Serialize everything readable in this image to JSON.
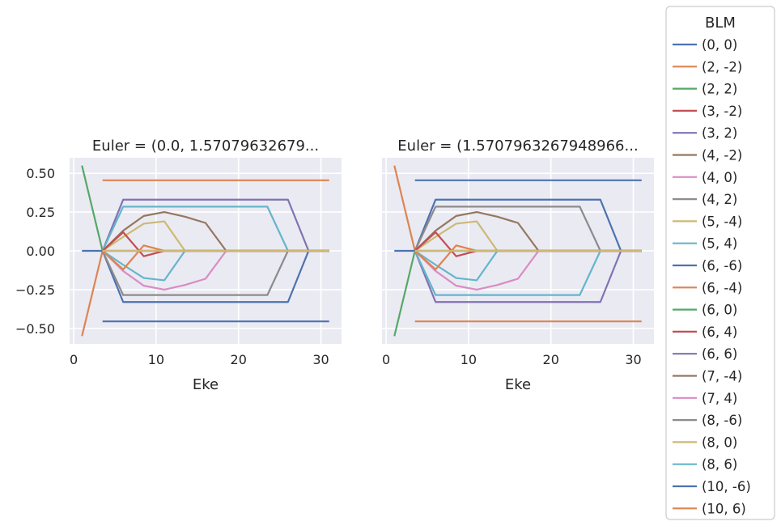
{
  "chart_data": {
    "type": "line",
    "legend": {
      "title": "BLM",
      "placement": "right-outside"
    },
    "series_styles": [
      {
        "name": "(0, 0)",
        "color": "#4c72b0"
      },
      {
        "name": "(2, -2)",
        "color": "#dd8452"
      },
      {
        "name": "(2, 2)",
        "color": "#55a868"
      },
      {
        "name": "(3, -2)",
        "color": "#c44e52"
      },
      {
        "name": "(3, 2)",
        "color": "#8172b3"
      },
      {
        "name": "(4, -2)",
        "color": "#937860"
      },
      {
        "name": "(4, 0)",
        "color": "#da8bc3"
      },
      {
        "name": "(4, 2)",
        "color": "#8c8c8c"
      },
      {
        "name": "(5, -4)",
        "color": "#ccb974"
      },
      {
        "name": "(5, 4)",
        "color": "#64b5cd"
      },
      {
        "name": "(6, -6)",
        "color": "#4c72b0"
      },
      {
        "name": "(6, -4)",
        "color": "#dd8452"
      },
      {
        "name": "(6, 0)",
        "color": "#55a868"
      },
      {
        "name": "(6, 4)",
        "color": "#c44e52"
      },
      {
        "name": "(6, 6)",
        "color": "#8172b3"
      },
      {
        "name": "(7, -4)",
        "color": "#937860"
      },
      {
        "name": "(7, 4)",
        "color": "#da8bc3"
      },
      {
        "name": "(8, -6)",
        "color": "#8c8c8c"
      },
      {
        "name": "(8, 0)",
        "color": "#ccb974"
      },
      {
        "name": "(8, 6)",
        "color": "#64b5cd"
      },
      {
        "name": "(10, -6)",
        "color": "#4c72b0"
      },
      {
        "name": "(10, 6)",
        "color": "#dd8452"
      }
    ],
    "panels": [
      {
        "title": "Euler = (0.0, 1.57079632679...",
        "xlabel": "Eke",
        "ylabel": "",
        "xlim": [
          -0.5,
          32.5
        ],
        "ylim": [
          -0.6,
          0.6
        ],
        "xticks": [
          0,
          10,
          20,
          30
        ],
        "xtick_labels": [
          "0",
          "10",
          "20",
          "30"
        ],
        "yticks": [
          0.5,
          0.25,
          0,
          -0.25,
          -0.5
        ],
        "ytick_labels": [
          "0.50",
          "0.25",
          "0.00",
          "−0.25",
          "−0.50"
        ],
        "grid": true,
        "series": [
          {
            "name": "(2, 2)",
            "x": [
              1,
              3.5
            ],
            "y": [
              0.55,
              0
            ]
          },
          {
            "name": "(2, -2)",
            "x": [
              1,
              3.5
            ],
            "y": [
              -0.55,
              0
            ]
          },
          {
            "name": "(0, 0)",
            "x": [
              1,
              3.5,
              31
            ],
            "y": [
              0,
              0,
              0
            ]
          },
          {
            "name": "(10, 6)",
            "x": [
              3.5,
              31
            ],
            "y": [
              0.455,
              0.455
            ]
          },
          {
            "name": "(10, -6)",
            "x": [
              3.5,
              31
            ],
            "y": [
              -0.455,
              -0.455
            ]
          },
          {
            "name": "(3, 2)",
            "x": [
              3.5,
              6,
              26,
              28.5,
              31
            ],
            "y": [
              0,
              0.33,
              0.33,
              0,
              0
            ]
          },
          {
            "name": "(6, -6)",
            "x": [
              3.5,
              6,
              26,
              28.5,
              31
            ],
            "y": [
              0,
              -0.33,
              -0.33,
              0,
              0
            ]
          },
          {
            "name": "(5, 4)",
            "x": [
              3.5,
              6,
              23.5,
              26,
              31
            ],
            "y": [
              0,
              0.285,
              0.285,
              0,
              0
            ]
          },
          {
            "name": "(4, 2)",
            "x": [
              3.5,
              6,
              23.5,
              26,
              31
            ],
            "y": [
              0,
              -0.285,
              -0.285,
              0,
              0
            ]
          },
          {
            "name": "(4, -2)",
            "x": [
              3.5,
              6,
              8.5,
              11,
              13.5,
              16,
              18.5,
              31
            ],
            "y": [
              0,
              0.13,
              0.225,
              0.25,
              0.22,
              0.18,
              0,
              0
            ]
          },
          {
            "name": "(4, 0)",
            "x": [
              3.5,
              6,
              8.5,
              11,
              13.5,
              16,
              18.5,
              31
            ],
            "y": [
              0,
              -0.13,
              -0.225,
              -0.25,
              -0.22,
              -0.18,
              0,
              0
            ]
          },
          {
            "name": "(5, -4)",
            "x": [
              3.5,
              6,
              8.5,
              11,
              13.5,
              31
            ],
            "y": [
              0,
              0.09,
              0.175,
              0.19,
              0,
              0
            ]
          },
          {
            "name": "(8, 6)",
            "x": [
              3.5,
              6,
              8.5,
              11,
              13.5,
              31
            ],
            "y": [
              0,
              -0.09,
              -0.175,
              -0.19,
              0,
              0
            ]
          },
          {
            "name": "(3, -2)",
            "x": [
              3.5,
              6,
              8.5,
              11,
              31
            ],
            "y": [
              0,
              0.12,
              -0.035,
              0,
              0
            ]
          },
          {
            "name": "(6, -4)",
            "x": [
              3.5,
              6,
              8.5,
              11,
              31
            ],
            "y": [
              0,
              -0.12,
              0.035,
              0,
              0
            ]
          },
          {
            "name": "(8, 0)",
            "x": [
              3.5,
              31
            ],
            "y": [
              0,
              0
            ]
          }
        ]
      },
      {
        "title": "Euler = (1.5707963267948966...",
        "xlabel": "Eke",
        "ylabel": "",
        "xlim": [
          -0.5,
          32.5
        ],
        "ylim": [
          -0.6,
          0.6
        ],
        "xticks": [
          0,
          10,
          20,
          30
        ],
        "xtick_labels": [
          "0",
          "10",
          "20",
          "30"
        ],
        "yticks": [
          0.5,
          0.25,
          0,
          -0.25,
          -0.5
        ],
        "ytick_labels": [
          "",
          "",
          "",
          "",
          ""
        ],
        "grid": true,
        "series": [
          {
            "name": "(10, 6)",
            "x": [
              1,
              3.5
            ],
            "y": [
              0.55,
              0
            ]
          },
          {
            "name": "(2, 2)",
            "x": [
              1,
              3.5
            ],
            "y": [
              -0.55,
              0
            ]
          },
          {
            "name": "(0, 0)",
            "x": [
              1,
              3.5,
              31
            ],
            "y": [
              0,
              0,
              0
            ]
          },
          {
            "name": "(10, -6)",
            "x": [
              3.5,
              31
            ],
            "y": [
              0.455,
              0.455
            ]
          },
          {
            "name": "(2, -2)",
            "x": [
              3.5,
              31
            ],
            "y": [
              -0.455,
              -0.455
            ]
          },
          {
            "name": "(6, -6)",
            "x": [
              3.5,
              6,
              26,
              28.5,
              31
            ],
            "y": [
              0,
              0.33,
              0.33,
              0,
              0
            ]
          },
          {
            "name": "(3, 2)",
            "x": [
              3.5,
              6,
              26,
              28.5,
              31
            ],
            "y": [
              0,
              -0.33,
              -0.33,
              0,
              0
            ]
          },
          {
            "name": "(4, 2)",
            "x": [
              3.5,
              6,
              23.5,
              26,
              31
            ],
            "y": [
              0,
              0.285,
              0.285,
              0,
              0
            ]
          },
          {
            "name": "(5, 4)",
            "x": [
              3.5,
              6,
              23.5,
              26,
              31
            ],
            "y": [
              0,
              -0.285,
              -0.285,
              0,
              0
            ]
          },
          {
            "name": "(4, -2)",
            "x": [
              3.5,
              6,
              8.5,
              11,
              13.5,
              16,
              18.5,
              31
            ],
            "y": [
              0,
              0.13,
              0.225,
              0.25,
              0.22,
              0.18,
              0,
              0
            ]
          },
          {
            "name": "(4, 0)",
            "x": [
              3.5,
              6,
              8.5,
              11,
              13.5,
              16,
              18.5,
              31
            ],
            "y": [
              0,
              -0.13,
              -0.225,
              -0.25,
              -0.22,
              -0.18,
              0,
              0
            ]
          },
          {
            "name": "(5, -4)",
            "x": [
              3.5,
              6,
              8.5,
              11,
              13.5,
              31
            ],
            "y": [
              0,
              0.09,
              0.175,
              0.19,
              0,
              0
            ]
          },
          {
            "name": "(8, 6)",
            "x": [
              3.5,
              6,
              8.5,
              11,
              13.5,
              31
            ],
            "y": [
              0,
              -0.09,
              -0.175,
              -0.19,
              0,
              0
            ]
          },
          {
            "name": "(3, -2)",
            "x": [
              3.5,
              6,
              8.5,
              11,
              31
            ],
            "y": [
              0,
              0.12,
              -0.035,
              0,
              0
            ]
          },
          {
            "name": "(6, -4)",
            "x": [
              3.5,
              6,
              8.5,
              11,
              31
            ],
            "y": [
              0,
              -0.12,
              0.035,
              0,
              0
            ]
          },
          {
            "name": "(8, 0)",
            "x": [
              3.5,
              31
            ],
            "y": [
              0,
              0
            ]
          }
        ]
      }
    ]
  },
  "colors": {
    "plot_background": "#eaeaf2",
    "grid": "#ffffff",
    "text": "#262626",
    "legend_border": "#cccccc"
  }
}
